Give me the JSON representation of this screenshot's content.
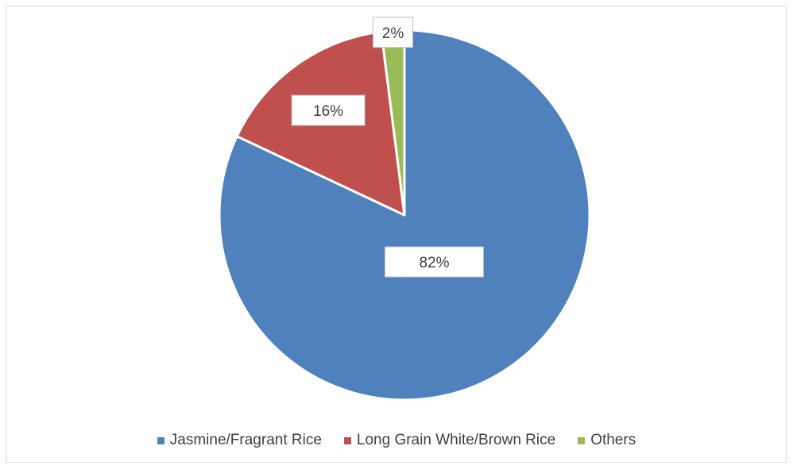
{
  "chart_data": {
    "type": "pie",
    "categories": [
      "Jasmine/Fragrant Rice",
      "Long Grain White/Brown Rice",
      "Others"
    ],
    "values": [
      82,
      16,
      2
    ],
    "data_labels": [
      "82%",
      "16%",
      "2%"
    ],
    "colors": [
      "#4f81bd",
      "#c0504d",
      "#9bbb59"
    ],
    "legend_position": "bottom",
    "start_angle_deg": 0,
    "direction": "clockwise"
  }
}
